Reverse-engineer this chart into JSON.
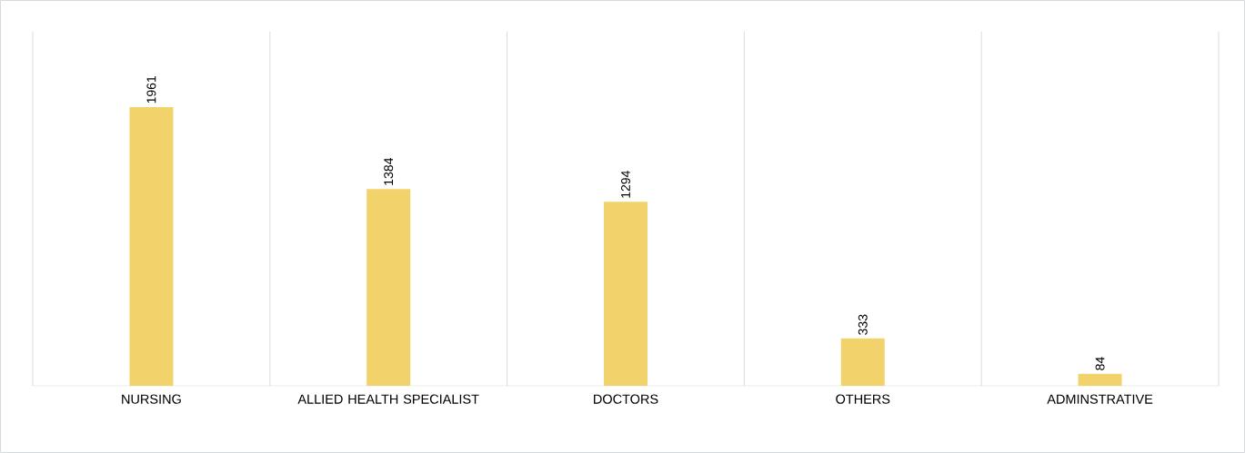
{
  "chart_data": {
    "type": "bar",
    "categories": [
      "NURSING",
      "ALLIED HEALTH SPECIALIST",
      "DOCTORS",
      "OTHERS",
      "ADMINSTRATIVE"
    ],
    "values": [
      1961,
      1384,
      1294,
      333,
      84
    ],
    "color": "#f2d36b",
    "data_labels": true,
    "grid": "x"
  }
}
